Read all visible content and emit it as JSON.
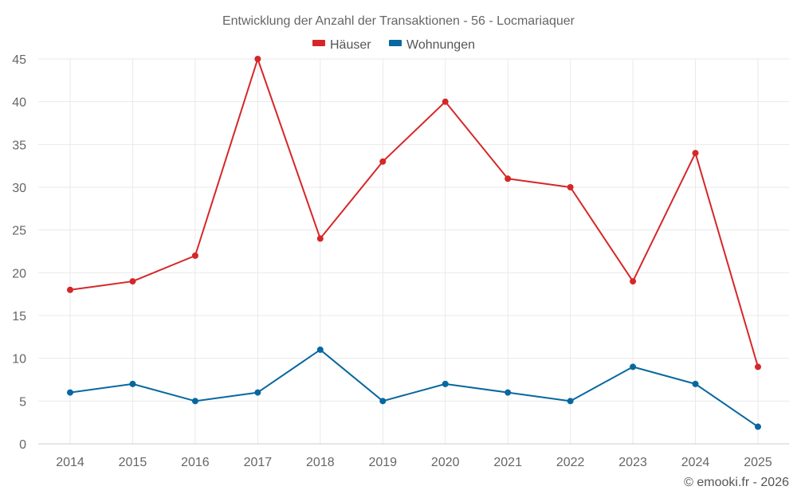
{
  "chart_data": {
    "type": "line",
    "title": "Entwicklung der Anzahl der Transaktionen - 56 - Locmariaquer",
    "categories": [
      "2014",
      "2015",
      "2016",
      "2017",
      "2018",
      "2019",
      "2020",
      "2021",
      "2022",
      "2023",
      "2024",
      "2025"
    ],
    "series": [
      {
        "name": "Häuser",
        "color": "#d62728",
        "values": [
          18,
          19,
          22,
          45,
          24,
          33,
          40,
          31,
          30,
          19,
          34,
          9
        ]
      },
      {
        "name": "Wohnungen",
        "color": "#07689f",
        "values": [
          6,
          7,
          5,
          6,
          11,
          5,
          7,
          6,
          5,
          9,
          7,
          2
        ]
      }
    ],
    "ylim": [
      0,
      45
    ],
    "yticks": [
      0,
      5,
      10,
      15,
      20,
      25,
      30,
      35,
      40,
      45
    ],
    "xlabel": "",
    "ylabel": "",
    "grid": true,
    "legend_position": "top-center"
  },
  "credit": "© emooki.fr - 2026"
}
